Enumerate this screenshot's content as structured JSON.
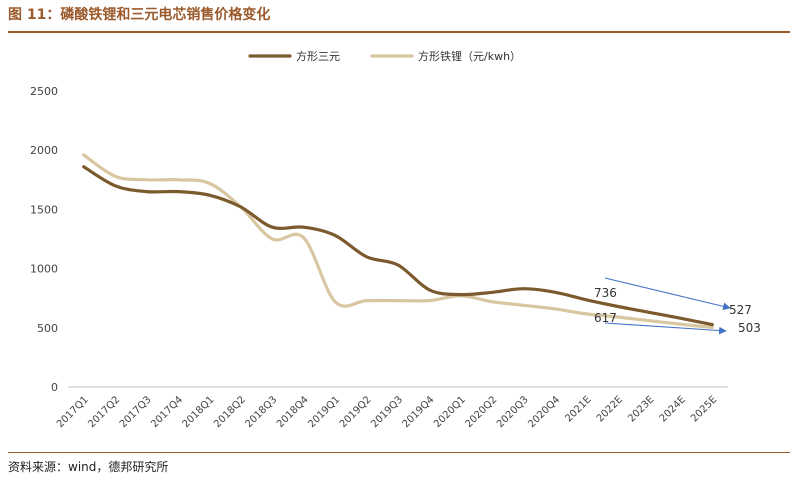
{
  "header": {
    "title": "图 11：磷酸铁锂和三元电芯销售价格变化"
  },
  "footer": {
    "source": "资料来源：wind，德邦研究所"
  },
  "colors": {
    "accent": "#9B5A2B",
    "ternary": "#7B5A2E",
    "lfp": "#D8C6A0",
    "arrow": "#4472C4",
    "axis": "#BFBFBF",
    "tick_text": "#444444"
  },
  "chart_data": {
    "type": "line",
    "ylabel": "",
    "xlabel": "",
    "ylim": [
      0,
      2500
    ],
    "yticks": [
      0,
      500,
      1000,
      1500,
      2000,
      2500
    ],
    "grid": false,
    "legend": "top-center",
    "categories": [
      "2017Q1",
      "2017Q2",
      "2017Q3",
      "2017Q4",
      "2018Q1",
      "2018Q2",
      "2018Q3",
      "2018Q4",
      "2019Q1",
      "2019Q2",
      "2019Q3",
      "2019Q4",
      "2020Q1",
      "2020Q2",
      "2020Q3",
      "2020Q4",
      "2021E",
      "2022E",
      "2023E",
      "2024E",
      "2025E"
    ],
    "series": [
      {
        "name": "方形三元",
        "color": "#7B5A2E",
        "values": [
          1860,
          1700,
          1650,
          1650,
          1620,
          1520,
          1350,
          1350,
          1280,
          1100,
          1030,
          820,
          780,
          800,
          830,
          800,
          736,
          680,
          630,
          580,
          527
        ]
      },
      {
        "name": "方形铁锂（元/kwh）",
        "color": "#D8C6A0",
        "values": [
          1960,
          1780,
          1750,
          1750,
          1720,
          1520,
          1250,
          1260,
          720,
          730,
          730,
          730,
          770,
          720,
          690,
          660,
          617,
          590,
          560,
          530,
          503
        ]
      }
    ],
    "annotations": [
      {
        "text": "736",
        "series": 0,
        "category": "2021E"
      },
      {
        "text": "617",
        "series": 1,
        "category": "2021E"
      },
      {
        "text": "527",
        "series": 0,
        "category": "2025E"
      },
      {
        "text": "503",
        "series": 1,
        "category": "2025E"
      }
    ]
  }
}
